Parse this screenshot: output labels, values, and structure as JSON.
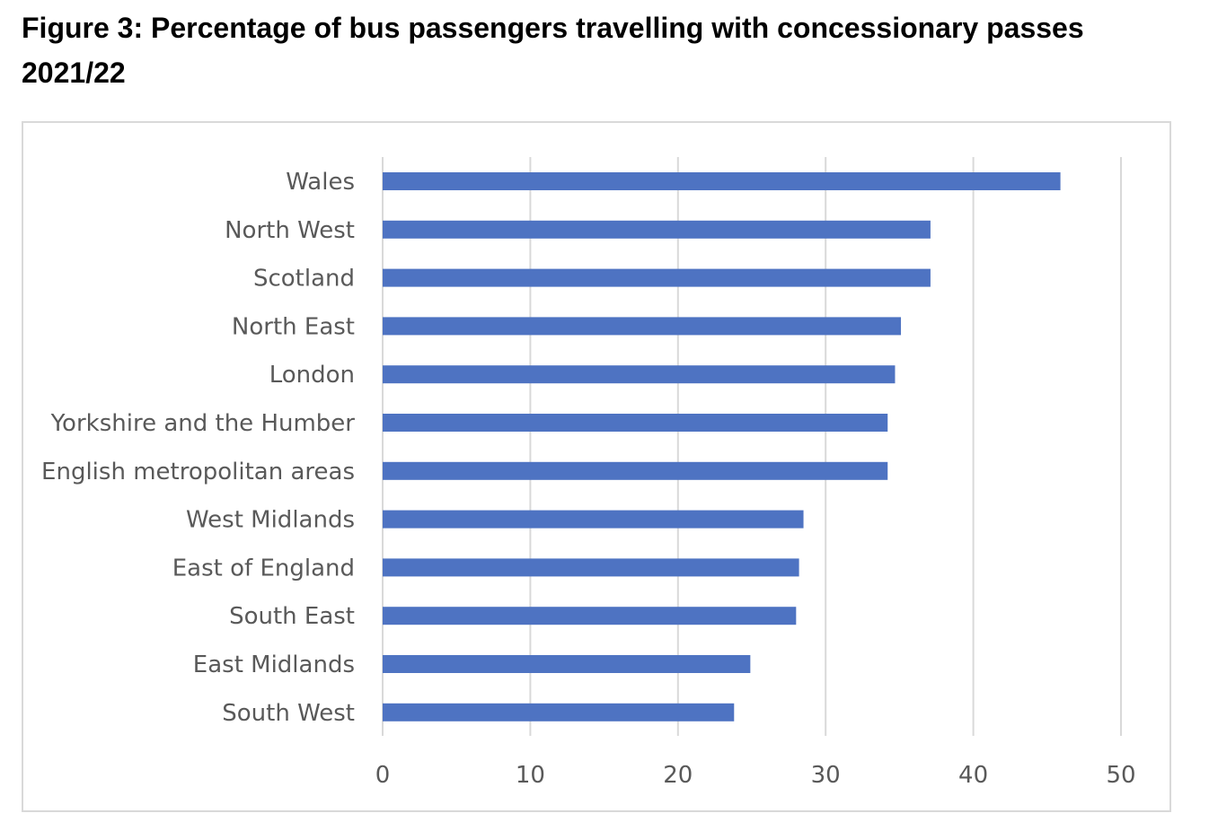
{
  "figure": {
    "title": "Figure 3: Percentage of bus passengers travelling with concessionary passes 2021/22"
  },
  "chart_data": {
    "type": "bar",
    "orientation": "horizontal",
    "title": "Figure 3: Percentage of bus passengers travelling with concessionary passes 2021/22",
    "xlabel": "",
    "ylabel": "",
    "categories": [
      "Wales",
      "North West",
      "Scotland",
      "North East",
      "London",
      "Yorkshire and the Humber",
      "English metropolitan areas",
      "West Midlands",
      "East of England",
      "South East",
      "East Midlands",
      "South West"
    ],
    "values": [
      45.9,
      37.1,
      37.1,
      35.1,
      34.7,
      34.2,
      34.2,
      28.5,
      28.2,
      28.0,
      24.9,
      23.8
    ],
    "xlim": [
      0,
      50
    ],
    "x_ticks": [
      "0",
      "10",
      "20",
      "30",
      "40",
      "50"
    ],
    "grid": true,
    "legend": "none",
    "bar_color": "#4e73c2",
    "grid_color": "#d9d9d9",
    "label_color": "#595959"
  }
}
